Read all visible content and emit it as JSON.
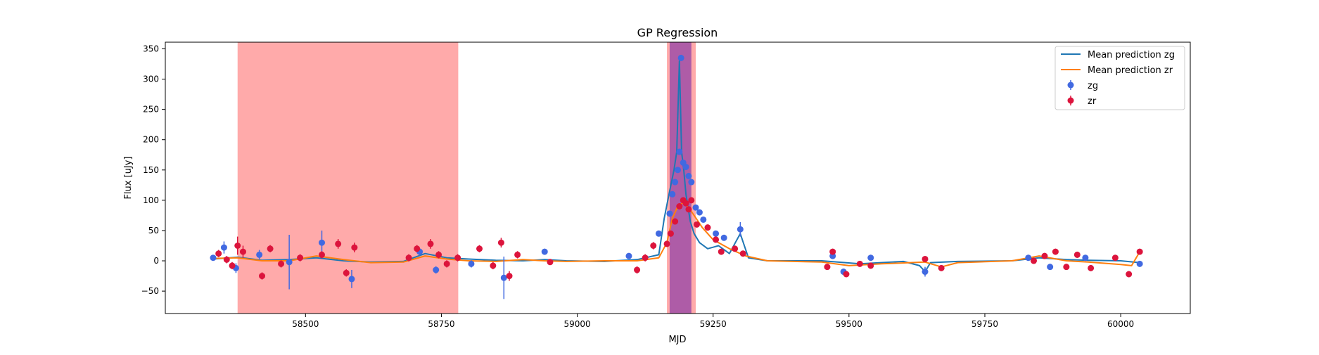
{
  "chart_data": {
    "type": "scatter",
    "title": "GP Regression",
    "xlabel": "MJD",
    "ylabel": "Flux [uJy]",
    "xlim": [
      58242,
      60128
    ],
    "ylim": [
      -87,
      361
    ],
    "xticks": [
      58500,
      58750,
      59000,
      59250,
      59500,
      59750,
      60000
    ],
    "xtick_labels": [
      "58500",
      "58750",
      "59000",
      "59250",
      "59500",
      "59750",
      "60000"
    ],
    "yticks": [
      -50,
      0,
      50,
      100,
      150,
      200,
      250,
      300,
      350
    ],
    "ytick_labels": [
      "−50",
      "0",
      "50",
      "100",
      "150",
      "200",
      "250",
      "300",
      "350"
    ],
    "grid": false,
    "legend_position": "top-right",
    "legend": [
      {
        "label": "Mean prediction zg",
        "kind": "line",
        "color": "#1f77b4"
      },
      {
        "label": "Mean prediction zr",
        "kind": "line",
        "color": "#ff7f0e"
      },
      {
        "label": "zg",
        "kind": "errorbar",
        "color": "#4169e1"
      },
      {
        "label": "zr",
        "kind": "errorbar",
        "color": "#dc143c"
      }
    ],
    "shaded_regions": [
      {
        "x": [
          58375,
          58781
        ],
        "color": "#ff5555",
        "opacity": 0.5
      },
      {
        "x": [
          59165,
          59218
        ],
        "color": "#ff5555",
        "opacity": 0.5
      },
      {
        "x": [
          59170,
          59210
        ],
        "color": "#8b3aa5",
        "opacity": 0.7
      }
    ],
    "series": [
      {
        "name": "Mean prediction zg",
        "kind": "line",
        "color": "#1f77b4",
        "x": [
          58330,
          58375,
          58420,
          58470,
          58520,
          58570,
          58620,
          58680,
          58720,
          58760,
          58800,
          58850,
          58900,
          58940,
          58980,
          59050,
          59110,
          59150,
          59160,
          59170,
          59178,
          59183,
          59188,
          59192,
          59196,
          59200,
          59208,
          59215,
          59225,
          59240,
          59260,
          59280,
          59300,
          59315,
          59350,
          59450,
          59520,
          59600,
          59630,
          59640,
          59650,
          59700,
          59800,
          59850,
          59900,
          59940,
          60000,
          60035
        ],
        "y": [
          3,
          6,
          1,
          2,
          5,
          0,
          -2,
          -1,
          12,
          5,
          3,
          1,
          0,
          2,
          0,
          -1,
          2,
          10,
          70,
          115,
          150,
          180,
          330,
          180,
          150,
          110,
          65,
          45,
          30,
          20,
          25,
          12,
          45,
          5,
          0,
          0,
          -5,
          -1,
          -8,
          -18,
          -3,
          -1,
          0,
          5,
          2,
          1,
          0,
          -3
        ]
      },
      {
        "name": "Mean prediction zr",
        "kind": "line",
        "color": "#ff7f0e",
        "x": [
          58330,
          58375,
          58420,
          58470,
          58520,
          58570,
          58620,
          58680,
          58720,
          58760,
          58800,
          58850,
          58900,
          58940,
          58980,
          59050,
          59110,
          59150,
          59165,
          59175,
          59185,
          59195,
          59205,
          59215,
          59230,
          59250,
          59280,
          59310,
          59350,
          59450,
          59500,
          59560,
          59640,
          59670,
          59700,
          59800,
          59850,
          59900,
          59940,
          60000,
          60020,
          60035
        ],
        "y": [
          4,
          5,
          0,
          0,
          8,
          2,
          -3,
          -2,
          8,
          3,
          0,
          -1,
          2,
          0,
          -1,
          0,
          0,
          5,
          30,
          70,
          90,
          96,
          88,
          75,
          55,
          35,
          20,
          8,
          0,
          -2,
          -8,
          -5,
          -2,
          -10,
          -3,
          0,
          8,
          0,
          -2,
          -6,
          -8,
          15
        ]
      },
      {
        "name": "zg",
        "kind": "errorbar",
        "color": "#4169e1",
        "points": [
          {
            "x": 58330,
            "y": 5,
            "err": 3
          },
          {
            "x": 58350,
            "y": 22,
            "err": 10
          },
          {
            "x": 58372,
            "y": -12,
            "err": 8
          },
          {
            "x": 58415,
            "y": 10,
            "err": 8
          },
          {
            "x": 58470,
            "y": -2,
            "err": 45
          },
          {
            "x": 58530,
            "y": 30,
            "err": 20
          },
          {
            "x": 58585,
            "y": -30,
            "err": 15
          },
          {
            "x": 58710,
            "y": 15,
            "err": 6
          },
          {
            "x": 58740,
            "y": -15,
            "err": 6
          },
          {
            "x": 58805,
            "y": -5,
            "err": 6
          },
          {
            "x": 58865,
            "y": -28,
            "err": 35
          },
          {
            "x": 58940,
            "y": 15,
            "err": 5
          },
          {
            "x": 59095,
            "y": 8,
            "err": 4
          },
          {
            "x": 59150,
            "y": 45,
            "err": 5
          },
          {
            "x": 59170,
            "y": 78,
            "err": 5
          },
          {
            "x": 59175,
            "y": 110,
            "err": 5
          },
          {
            "x": 59180,
            "y": 130,
            "err": 5
          },
          {
            "x": 59185,
            "y": 150,
            "err": 5
          },
          {
            "x": 59188,
            "y": 180,
            "err": 5
          },
          {
            "x": 59191,
            "y": 335,
            "err": 5
          },
          {
            "x": 59195,
            "y": 162,
            "err": 5
          },
          {
            "x": 59200,
            "y": 155,
            "err": 5
          },
          {
            "x": 59205,
            "y": 140,
            "err": 5
          },
          {
            "x": 59210,
            "y": 130,
            "err": 5
          },
          {
            "x": 59218,
            "y": 88,
            "err": 4
          },
          {
            "x": 59225,
            "y": 80,
            "err": 4
          },
          {
            "x": 59232,
            "y": 68,
            "err": 4
          },
          {
            "x": 59255,
            "y": 45,
            "err": 4
          },
          {
            "x": 59270,
            "y": 38,
            "err": 4
          },
          {
            "x": 59300,
            "y": 52,
            "err": 12
          },
          {
            "x": 59470,
            "y": 8,
            "err": 5
          },
          {
            "x": 59490,
            "y": -18,
            "err": 5
          },
          {
            "x": 59540,
            "y": 5,
            "err": 5
          },
          {
            "x": 59640,
            "y": -18,
            "err": 8
          },
          {
            "x": 59830,
            "y": 5,
            "err": 5
          },
          {
            "x": 59870,
            "y": -10,
            "err": 5
          },
          {
            "x": 59935,
            "y": 5,
            "err": 5
          },
          {
            "x": 60035,
            "y": -5,
            "err": 5
          }
        ]
      },
      {
        "name": "zr",
        "kind": "errorbar",
        "color": "#dc143c",
        "points": [
          {
            "x": 58340,
            "y": 12,
            "err": 6
          },
          {
            "x": 58355,
            "y": 2,
            "err": 6
          },
          {
            "x": 58365,
            "y": -8,
            "err": 6
          },
          {
            "x": 58375,
            "y": 25,
            "err": 15
          },
          {
            "x": 58385,
            "y": 15,
            "err": 10
          },
          {
            "x": 58420,
            "y": -25,
            "err": 6
          },
          {
            "x": 58435,
            "y": 20,
            "err": 6
          },
          {
            "x": 58455,
            "y": -5,
            "err": 6
          },
          {
            "x": 58490,
            "y": 5,
            "err": 6
          },
          {
            "x": 58530,
            "y": 10,
            "err": 6
          },
          {
            "x": 58560,
            "y": 28,
            "err": 8
          },
          {
            "x": 58575,
            "y": -20,
            "err": 6
          },
          {
            "x": 58590,
            "y": 22,
            "err": 8
          },
          {
            "x": 58690,
            "y": 5,
            "err": 6
          },
          {
            "x": 58705,
            "y": 20,
            "err": 6
          },
          {
            "x": 58730,
            "y": 28,
            "err": 8
          },
          {
            "x": 58745,
            "y": 10,
            "err": 6
          },
          {
            "x": 58760,
            "y": -5,
            "err": 6
          },
          {
            "x": 58780,
            "y": 5,
            "err": 6
          },
          {
            "x": 58820,
            "y": 20,
            "err": 6
          },
          {
            "x": 58845,
            "y": -8,
            "err": 6
          },
          {
            "x": 58860,
            "y": 30,
            "err": 8
          },
          {
            "x": 58875,
            "y": -25,
            "err": 8
          },
          {
            "x": 58890,
            "y": 10,
            "err": 6
          },
          {
            "x": 58950,
            "y": -2,
            "err": 4
          },
          {
            "x": 59110,
            "y": -15,
            "err": 6
          },
          {
            "x": 59125,
            "y": 5,
            "err": 6
          },
          {
            "x": 59140,
            "y": 25,
            "err": 6
          },
          {
            "x": 59165,
            "y": 28,
            "err": 5
          },
          {
            "x": 59172,
            "y": 45,
            "err": 5
          },
          {
            "x": 59180,
            "y": 65,
            "err": 5
          },
          {
            "x": 59188,
            "y": 90,
            "err": 5
          },
          {
            "x": 59195,
            "y": 100,
            "err": 5
          },
          {
            "x": 59200,
            "y": 95,
            "err": 5
          },
          {
            "x": 59205,
            "y": 85,
            "err": 5
          },
          {
            "x": 59210,
            "y": 100,
            "err": 5
          },
          {
            "x": 59220,
            "y": 60,
            "err": 5
          },
          {
            "x": 59240,
            "y": 55,
            "err": 5
          },
          {
            "x": 59255,
            "y": 35,
            "err": 5
          },
          {
            "x": 59265,
            "y": 15,
            "err": 5
          },
          {
            "x": 59290,
            "y": 20,
            "err": 5
          },
          {
            "x": 59305,
            "y": 12,
            "err": 5
          },
          {
            "x": 59460,
            "y": -10,
            "err": 5
          },
          {
            "x": 59470,
            "y": 15,
            "err": 5
          },
          {
            "x": 59495,
            "y": -22,
            "err": 5
          },
          {
            "x": 59520,
            "y": -5,
            "err": 5
          },
          {
            "x": 59540,
            "y": -8,
            "err": 5
          },
          {
            "x": 59640,
            "y": 3,
            "err": 4
          },
          {
            "x": 59670,
            "y": -12,
            "err": 4
          },
          {
            "x": 59840,
            "y": 0,
            "err": 5
          },
          {
            "x": 59860,
            "y": 8,
            "err": 5
          },
          {
            "x": 59880,
            "y": 15,
            "err": 5
          },
          {
            "x": 59900,
            "y": -10,
            "err": 5
          },
          {
            "x": 59920,
            "y": 10,
            "err": 5
          },
          {
            "x": 59945,
            "y": -12,
            "err": 5
          },
          {
            "x": 59990,
            "y": 5,
            "err": 4
          },
          {
            "x": 60015,
            "y": -22,
            "err": 5
          },
          {
            "x": 60035,
            "y": 15,
            "err": 5
          }
        ]
      }
    ]
  }
}
